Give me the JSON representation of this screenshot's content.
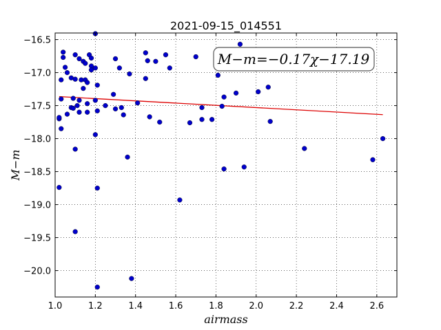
{
  "chart_data": {
    "type": "scatter",
    "title": "2021-09-15_014551",
    "xlabel": "airmass",
    "ylabel": "M−m",
    "xlim": [
      1.0,
      2.7
    ],
    "ylim": [
      -20.4,
      -16.4
    ],
    "y_inverted": true,
    "grid": true,
    "x_ticks": [
      1.0,
      1.2,
      1.4,
      1.6,
      1.8,
      2.0,
      2.2,
      2.4,
      2.6
    ],
    "x_tick_labels": [
      "1.0",
      "1.2",
      "1.4",
      "1.6",
      "1.8",
      "2.0",
      "2.2",
      "2.4",
      "2.6"
    ],
    "y_ticks": [
      -16.5,
      -17.0,
      -17.5,
      -18.0,
      -18.5,
      -19.0,
      -19.5,
      -20.0
    ],
    "y_tick_labels": [
      "−16.5",
      "−17.0",
      "−17.5",
      "−18.0",
      "−18.5",
      "−19.0",
      "−19.5",
      "−20.0"
    ],
    "annotation": "M−m=−0.17χ−17.19",
    "fit_line": {
      "slope": -0.17,
      "intercept": -17.19,
      "x_range": [
        1.02,
        2.63
      ],
      "color": "#dd0000"
    },
    "point_color": "#0000cc",
    "points": [
      [
        1.02,
        -18.74
      ],
      [
        1.02,
        -17.7
      ],
      [
        1.02,
        -17.68
      ],
      [
        1.03,
        -17.85
      ],
      [
        1.03,
        -17.4
      ],
      [
        1.03,
        -17.11
      ],
      [
        1.04,
        -16.69
      ],
      [
        1.04,
        -16.77
      ],
      [
        1.05,
        -16.92
      ],
      [
        1.06,
        -17.0
      ],
      [
        1.06,
        -17.63
      ],
      [
        1.08,
        -17.53
      ],
      [
        1.08,
        -17.08
      ],
      [
        1.09,
        -17.54
      ],
      [
        1.09,
        -17.39
      ],
      [
        1.1,
        -17.1
      ],
      [
        1.1,
        -18.16
      ],
      [
        1.1,
        -19.41
      ],
      [
        1.1,
        -16.73
      ],
      [
        1.11,
        -17.5
      ],
      [
        1.12,
        -16.79
      ],
      [
        1.12,
        -17.42
      ],
      [
        1.12,
        -17.6
      ],
      [
        1.13,
        -17.11
      ],
      [
        1.14,
        -17.24
      ],
      [
        1.14,
        -16.83
      ],
      [
        1.15,
        -16.86
      ],
      [
        1.15,
        -17.11
      ],
      [
        1.16,
        -17.15
      ],
      [
        1.16,
        -17.47
      ],
      [
        1.16,
        -17.6
      ],
      [
        1.17,
        -16.73
      ],
      [
        1.18,
        -16.9
      ],
      [
        1.18,
        -16.96
      ],
      [
        1.18,
        -16.78
      ],
      [
        1.2,
        -16.41
      ],
      [
        1.2,
        -16.93
      ],
      [
        1.2,
        -17.42
      ],
      [
        1.2,
        -17.94
      ],
      [
        1.21,
        -17.19
      ],
      [
        1.21,
        -17.58
      ],
      [
        1.21,
        -18.75
      ],
      [
        1.21,
        -20.25
      ],
      [
        1.25,
        -17.5
      ],
      [
        1.29,
        -17.33
      ],
      [
        1.3,
        -16.79
      ],
      [
        1.3,
        -17.55
      ],
      [
        1.32,
        -16.93
      ],
      [
        1.33,
        -17.53
      ],
      [
        1.34,
        -17.64
      ],
      [
        1.36,
        -18.28
      ],
      [
        1.37,
        -17.02
      ],
      [
        1.38,
        -20.12
      ],
      [
        1.41,
        -17.46
      ],
      [
        1.45,
        -17.09
      ],
      [
        1.45,
        -16.7
      ],
      [
        1.46,
        -16.82
      ],
      [
        1.47,
        -17.67
      ],
      [
        1.5,
        -16.83
      ],
      [
        1.52,
        -17.75
      ],
      [
        1.55,
        -16.73
      ],
      [
        1.57,
        -16.93
      ],
      [
        1.62,
        -18.93
      ],
      [
        1.67,
        -17.76
      ],
      [
        1.7,
        -16.76
      ],
      [
        1.73,
        -17.71
      ],
      [
        1.73,
        -17.53
      ],
      [
        1.78,
        -17.71
      ],
      [
        1.81,
        -17.04
      ],
      [
        1.83,
        -17.51
      ],
      [
        1.84,
        -17.37
      ],
      [
        1.84,
        -18.46
      ],
      [
        1.9,
        -17.31
      ],
      [
        1.92,
        -16.57
      ],
      [
        1.94,
        -18.43
      ],
      [
        2.01,
        -17.29
      ],
      [
        2.06,
        -17.22
      ],
      [
        2.07,
        -17.74
      ],
      [
        2.24,
        -18.15
      ],
      [
        2.58,
        -18.32
      ],
      [
        2.63,
        -18.0
      ]
    ]
  }
}
